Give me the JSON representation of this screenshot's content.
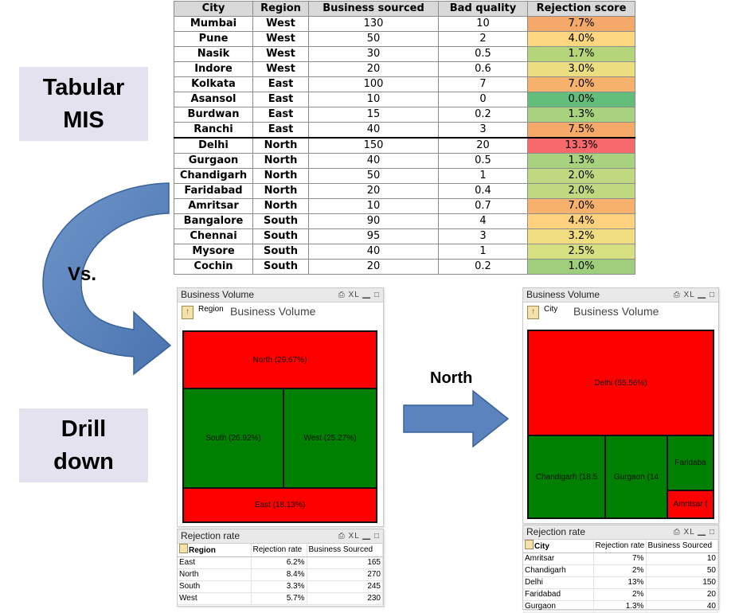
{
  "labels": {
    "tabular": [
      "Tabular",
      "MIS"
    ],
    "vs": "Vs.",
    "drill": [
      "Drill",
      "down"
    ],
    "north": "North"
  },
  "top_table": {
    "headers": [
      "City",
      "Region",
      "Business sourced",
      "Bad quality",
      "Rejection score"
    ],
    "rows": [
      {
        "city": "Mumbai",
        "region": "West",
        "business": "130",
        "bad": "10",
        "score": "7.7%",
        "color": "#f4a86a"
      },
      {
        "city": "Pune",
        "region": "West",
        "business": "50",
        "bad": "2",
        "score": "4.0%",
        "color": "#fcd77f"
      },
      {
        "city": "Nasik",
        "region": "West",
        "business": "30",
        "bad": "0.5",
        "score": "1.7%",
        "color": "#b5d57b"
      },
      {
        "city": "Indore",
        "region": "West",
        "business": "20",
        "bad": "0.6",
        "score": "3.0%",
        "color": "#ecdd80"
      },
      {
        "city": "Kolkata",
        "region": "East",
        "business": "100",
        "bad": "7",
        "score": "7.0%",
        "color": "#f6b26c"
      },
      {
        "city": "Asansol",
        "region": "East",
        "business": "10",
        "bad": "0",
        "score": "0.0%",
        "color": "#63be7b"
      },
      {
        "city": "Burdwan",
        "region": "East",
        "business": "15",
        "bad": "0.2",
        "score": "1.3%",
        "color": "#a8d27d"
      },
      {
        "city": "Ranchi",
        "region": "East",
        "business": "40",
        "bad": "3",
        "score": "7.5%",
        "color": "#f5aa6a"
      },
      {
        "city": "Delhi",
        "region": "North",
        "business": "150",
        "bad": "20",
        "score": "13.3%",
        "color": "#f8696b"
      },
      {
        "city": "Gurgaon",
        "region": "North",
        "business": "40",
        "bad": "0.5",
        "score": "1.3%",
        "color": "#a8d27d"
      },
      {
        "city": "Chandigarh",
        "region": "North",
        "business": "50",
        "bad": "1",
        "score": "2.0%",
        "color": "#c0d980"
      },
      {
        "city": "Faridabad",
        "region": "North",
        "business": "20",
        "bad": "0.4",
        "score": "2.0%",
        "color": "#c0d980"
      },
      {
        "city": "Amritsar",
        "region": "North",
        "business": "10",
        "bad": "0.7",
        "score": "7.0%",
        "color": "#f6b26c"
      },
      {
        "city": "Bangalore",
        "region": "South",
        "business": "90",
        "bad": "4",
        "score": "4.4%",
        "color": "#fdd17e"
      },
      {
        "city": "Chennai",
        "region": "South",
        "business": "95",
        "bad": "3",
        "score": "3.2%",
        "color": "#f0de81"
      },
      {
        "city": "Mysore",
        "region": "South",
        "business": "40",
        "bad": "1",
        "score": "2.5%",
        "color": "#d6e081"
      },
      {
        "city": "Cochin",
        "region": "South",
        "business": "20",
        "bad": "0.2",
        "score": "1.0%",
        "color": "#9fcf7c"
      }
    ]
  },
  "left_panel": {
    "title": "Business Volume",
    "controls": "⎙ XL ▁ □",
    "field": "Region",
    "chart_title": "Business Volume"
  },
  "right_panel": {
    "title": "Business Volume",
    "controls": "⎙ XL ▁ □",
    "field": "City",
    "chart_title": "Business Volume"
  },
  "chart_data": [
    {
      "type": "treemap",
      "title": "Business Volume",
      "dimension": "Region",
      "cells": [
        {
          "label": "North (29.67%)",
          "value": 29.67,
          "color": "#ff0000"
        },
        {
          "label": "South (26.92%)",
          "value": 26.92,
          "color": "#008000"
        },
        {
          "label": "West (25.27%)",
          "value": 25.27,
          "color": "#008000"
        },
        {
          "label": "East (18.13%)",
          "value": 18.13,
          "color": "#ff0000"
        }
      ]
    },
    {
      "type": "treemap",
      "title": "Business Volume",
      "dimension": "City",
      "cells": [
        {
          "label": "Delhi (55.56%)",
          "value": 55.56,
          "color": "#ff0000"
        },
        {
          "label": "Chandigarh (18.5",
          "value": 18.52,
          "color": "#008000"
        },
        {
          "label": "Gurgaon (14",
          "value": 14.81,
          "color": "#008000"
        },
        {
          "label": "Faridaba",
          "value": 7.41,
          "color": "#008000"
        },
        {
          "label": "Amritsar (",
          "value": 3.7,
          "color": "#ff0000"
        }
      ]
    }
  ],
  "left_rejection": {
    "title": "Rejection rate",
    "controls": "⎙ XL ▁ □",
    "headers": [
      "Region",
      "Rejection rate",
      "Business Sourced"
    ],
    "rows": [
      [
        "East",
        "6.2%",
        "165"
      ],
      [
        "North",
        "8.4%",
        "270"
      ],
      [
        "South",
        "3.3%",
        "245"
      ],
      [
        "West",
        "5.7%",
        "230"
      ]
    ]
  },
  "right_rejection": {
    "title": "Rejection rate",
    "controls": "⎙ XL ▁ □",
    "headers": [
      "City",
      "Rejection rate",
      "Business Sourced"
    ],
    "rows": [
      [
        "Amritsar",
        "7%",
        "10"
      ],
      [
        "Chandigarh",
        "2%",
        "50"
      ],
      [
        "Delhi",
        "13%",
        "150"
      ],
      [
        "Faridabad",
        "2%",
        "20"
      ],
      [
        "Gurgaon",
        "1.3%",
        "40"
      ]
    ]
  }
}
